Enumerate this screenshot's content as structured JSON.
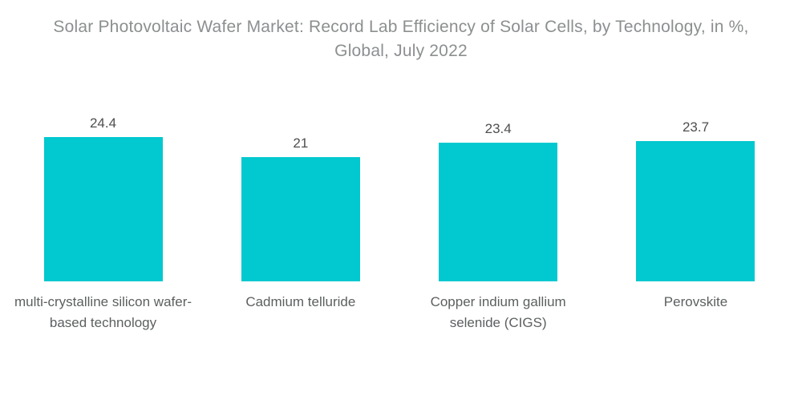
{
  "chart_data": {
    "type": "bar",
    "title": "Solar Photovoltaic Wafer Market: Record Lab Efficiency of Solar Cells, by Technology, in %, Global, July 2022",
    "title_lines": [
      "Solar Photovoltaic Wafer Market: Record Lab Efficiency of Solar Cells, by Technology, in %,",
      "Global, July 2022"
    ],
    "categories": [
      "multi-crystalline silicon wafer-based technology",
      "Cadmium telluride",
      "Copper indium gallium selenide (CIGS)",
      "Perovskite"
    ],
    "values": [
      24.4,
      21,
      23.4,
      23.7
    ],
    "value_labels": [
      "24.4",
      "21",
      "23.4",
      "23.7"
    ],
    "unit": "%",
    "xlabel": "",
    "ylabel": "",
    "ylim": [
      0,
      24.4
    ],
    "grid": false,
    "axes_shown": false,
    "legend_position": "none",
    "colors": {
      "bar_fill": "#02C8CF",
      "title_text": "#8c8f90",
      "value_label_text": "#4d4f50",
      "category_label_text": "#5c5f60",
      "background": "#ffffff"
    }
  }
}
